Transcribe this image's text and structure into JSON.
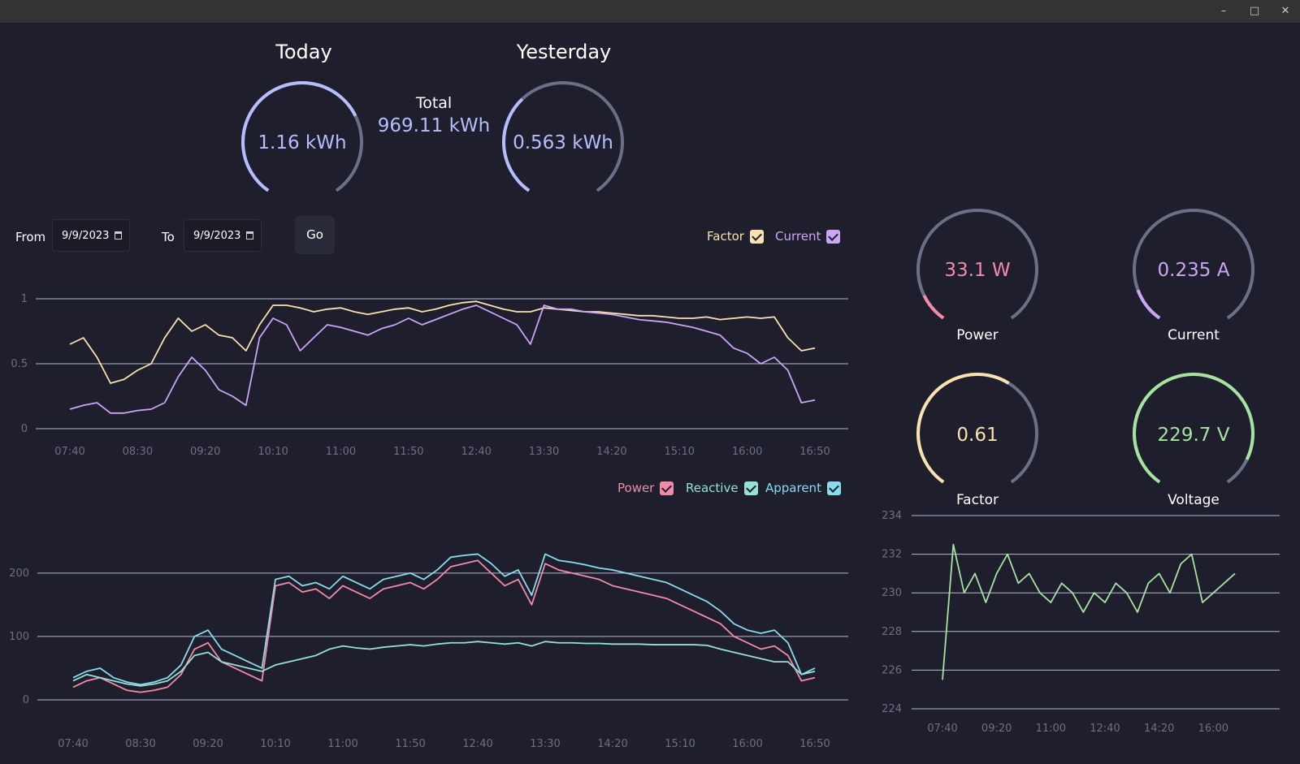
{
  "window": {
    "minimize_icon": "minimize-icon",
    "maximize_icon": "maximize-icon",
    "close_icon": "close-icon"
  },
  "summary": {
    "today": {
      "heading": "Today",
      "value": "1.16 kWh",
      "fraction": 0.72
    },
    "total": {
      "label": "Total",
      "value": "969.11 kWh"
    },
    "yesterday": {
      "heading": "Yesterday",
      "value": "0.563 kWh",
      "fraction": 0.35
    }
  },
  "controls": {
    "from_label": "From",
    "from_value": "9/9/2023",
    "to_label": "To",
    "to_value": "9/9/2023",
    "go_label": "Go",
    "calendar_icon": "calendar-icon"
  },
  "legend_top": [
    {
      "label": "Factor",
      "color": "#f9e2af",
      "checked": true
    },
    {
      "label": "Current",
      "color": "#cba6f7",
      "checked": true
    }
  ],
  "legend_bottom": [
    {
      "label": "Power",
      "color": "#f38ba8",
      "checked": true
    },
    {
      "label": "Reactive",
      "color": "#94e2d5",
      "checked": true
    },
    {
      "label": "Apparent",
      "color": "#89dceb",
      "checked": true
    }
  ],
  "gauges": [
    {
      "value": "33.1 W",
      "label": "Power",
      "color": "#f38ba8",
      "fraction": 0.1
    },
    {
      "value": "0.235 A",
      "label": "Current",
      "color": "#cba6f7",
      "fraction": 0.12
    },
    {
      "value": "0.61",
      "label": "Factor",
      "color": "#f9e2af",
      "fraction": 0.61
    },
    {
      "value": "229.7 V",
      "label": "Voltage",
      "color": "#a6e3a1",
      "fraction": 0.9
    }
  ],
  "colors": {
    "track": "#6c7086",
    "grid": "#cdd6f4",
    "tick": "#6c6f85",
    "kwh": "#b4befe"
  },
  "chart_data": [
    {
      "type": "line",
      "x": [
        "07:40",
        "07:50",
        "08:00",
        "08:10",
        "08:20",
        "08:30",
        "08:40",
        "08:50",
        "09:00",
        "09:10",
        "09:20",
        "09:30",
        "09:40",
        "09:50",
        "10:00",
        "10:10",
        "10:20",
        "10:30",
        "10:40",
        "10:50",
        "11:00",
        "11:10",
        "11:20",
        "11:30",
        "11:40",
        "11:50",
        "12:00",
        "12:10",
        "12:20",
        "12:30",
        "12:40",
        "12:50",
        "13:00",
        "13:10",
        "13:20",
        "13:30",
        "13:40",
        "13:50",
        "14:00",
        "14:10",
        "14:20",
        "14:30",
        "14:40",
        "14:50",
        "15:00",
        "15:10",
        "15:20",
        "15:30",
        "15:40",
        "15:50",
        "16:00",
        "16:10",
        "16:20",
        "16:30",
        "16:40",
        "16:50"
      ],
      "x_ticks": [
        "07:40",
        "08:30",
        "09:20",
        "10:10",
        "11:00",
        "11:50",
        "12:40",
        "13:30",
        "14:20",
        "15:10",
        "16:00",
        "16:50"
      ],
      "ylim": [
        0,
        1
      ],
      "y_ticks": [
        "0",
        "0.5",
        "1"
      ],
      "series": [
        {
          "name": "Factor",
          "color": "#f9e2af",
          "values": [
            0.65,
            0.7,
            0.55,
            0.35,
            0.38,
            0.45,
            0.5,
            0.7,
            0.85,
            0.75,
            0.8,
            0.72,
            0.7,
            0.6,
            0.8,
            0.95,
            0.95,
            0.93,
            0.9,
            0.92,
            0.93,
            0.9,
            0.88,
            0.9,
            0.92,
            0.93,
            0.9,
            0.92,
            0.95,
            0.97,
            0.98,
            0.95,
            0.92,
            0.9,
            0.9,
            0.93,
            0.92,
            0.91,
            0.9,
            0.9,
            0.89,
            0.88,
            0.87,
            0.87,
            0.86,
            0.85,
            0.85,
            0.86,
            0.84,
            0.85,
            0.86,
            0.85,
            0.86,
            0.7,
            0.6,
            0.62
          ]
        },
        {
          "name": "Current",
          "color": "#cba6f7",
          "values": [
            0.15,
            0.18,
            0.2,
            0.12,
            0.12,
            0.14,
            0.15,
            0.2,
            0.4,
            0.55,
            0.45,
            0.3,
            0.25,
            0.18,
            0.7,
            0.85,
            0.8,
            0.6,
            0.7,
            0.8,
            0.78,
            0.75,
            0.72,
            0.77,
            0.8,
            0.85,
            0.8,
            0.84,
            0.88,
            0.92,
            0.95,
            0.9,
            0.85,
            0.8,
            0.65,
            0.95,
            0.92,
            0.92,
            0.9,
            0.89,
            0.88,
            0.86,
            0.84,
            0.83,
            0.82,
            0.8,
            0.78,
            0.75,
            0.72,
            0.62,
            0.58,
            0.5,
            0.55,
            0.45,
            0.2,
            0.22
          ]
        }
      ]
    },
    {
      "type": "line",
      "x": [
        "07:40",
        "07:50",
        "08:00",
        "08:10",
        "08:20",
        "08:30",
        "08:40",
        "08:50",
        "09:00",
        "09:10",
        "09:20",
        "09:30",
        "09:40",
        "09:50",
        "10:00",
        "10:10",
        "10:20",
        "10:30",
        "10:40",
        "10:50",
        "11:00",
        "11:10",
        "11:20",
        "11:30",
        "11:40",
        "11:50",
        "12:00",
        "12:10",
        "12:20",
        "12:30",
        "12:40",
        "12:50",
        "13:00",
        "13:10",
        "13:20",
        "13:30",
        "13:40",
        "13:50",
        "14:00",
        "14:10",
        "14:20",
        "14:30",
        "14:40",
        "14:50",
        "15:00",
        "15:10",
        "15:20",
        "15:30",
        "15:40",
        "15:50",
        "16:00",
        "16:10",
        "16:20",
        "16:30",
        "16:40",
        "16:50"
      ],
      "x_ticks": [
        "07:40",
        "08:30",
        "09:20",
        "10:10",
        "11:00",
        "11:50",
        "12:40",
        "13:30",
        "14:20",
        "15:10",
        "16:00",
        "16:50"
      ],
      "ylim": [
        0,
        260
      ],
      "y_ticks": [
        "0",
        "100",
        "200"
      ],
      "series": [
        {
          "name": "Power",
          "color": "#f38ba8",
          "values": [
            20,
            30,
            35,
            25,
            15,
            12,
            15,
            20,
            40,
            80,
            90,
            60,
            50,
            40,
            30,
            180,
            185,
            170,
            175,
            160,
            180,
            170,
            160,
            175,
            180,
            185,
            175,
            190,
            210,
            215,
            220,
            200,
            180,
            190,
            150,
            215,
            205,
            200,
            195,
            190,
            180,
            175,
            170,
            165,
            160,
            150,
            140,
            130,
            120,
            100,
            90,
            80,
            85,
            70,
            30,
            35
          ]
        },
        {
          "name": "Reactive",
          "color": "#94e2d5",
          "values": [
            30,
            40,
            35,
            30,
            25,
            22,
            25,
            30,
            45,
            70,
            75,
            60,
            55,
            50,
            45,
            55,
            60,
            65,
            70,
            80,
            85,
            82,
            80,
            83,
            85,
            87,
            85,
            88,
            90,
            90,
            92,
            90,
            88,
            90,
            85,
            92,
            90,
            90,
            89,
            89,
            88,
            88,
            88,
            87,
            87,
            87,
            87,
            86,
            80,
            75,
            70,
            65,
            60,
            60,
            40,
            45
          ]
        },
        {
          "name": "Apparent",
          "color": "#89dceb",
          "values": [
            35,
            45,
            50,
            35,
            28,
            24,
            28,
            35,
            55,
            100,
            110,
            80,
            70,
            60,
            50,
            190,
            195,
            180,
            185,
            175,
            195,
            185,
            175,
            190,
            195,
            200,
            190,
            205,
            225,
            228,
            230,
            215,
            195,
            205,
            165,
            230,
            220,
            217,
            213,
            208,
            205,
            200,
            195,
            190,
            185,
            175,
            165,
            155,
            140,
            120,
            110,
            105,
            110,
            90,
            40,
            50
          ]
        }
      ]
    },
    {
      "type": "line",
      "x": [
        "07:40",
        "08:00",
        "08:20",
        "08:40",
        "09:00",
        "09:20",
        "09:40",
        "10:00",
        "10:20",
        "10:40",
        "11:00",
        "11:20",
        "11:40",
        "12:00",
        "12:20",
        "12:40",
        "13:00",
        "13:20",
        "13:40",
        "14:00",
        "14:20",
        "14:40",
        "15:00",
        "15:20",
        "15:40",
        "16:00",
        "16:20",
        "16:40"
      ],
      "x_ticks": [
        "07:40",
        "09:20",
        "11:00",
        "12:40",
        "14:20",
        "16:00"
      ],
      "ylim": [
        224,
        234
      ],
      "y_ticks": [
        "224",
        "226",
        "228",
        "230",
        "232",
        "234"
      ],
      "series": [
        {
          "name": "Voltage",
          "color": "#a6e3a1",
          "values": [
            225.5,
            232.5,
            230,
            231,
            229.5,
            231,
            232,
            230.5,
            231,
            230,
            229.5,
            230.5,
            230,
            229,
            230,
            229.5,
            230.5,
            230,
            229,
            230.5,
            231,
            230,
            231.5,
            232,
            229.5,
            230,
            230.5,
            231
          ]
        }
      ]
    }
  ]
}
